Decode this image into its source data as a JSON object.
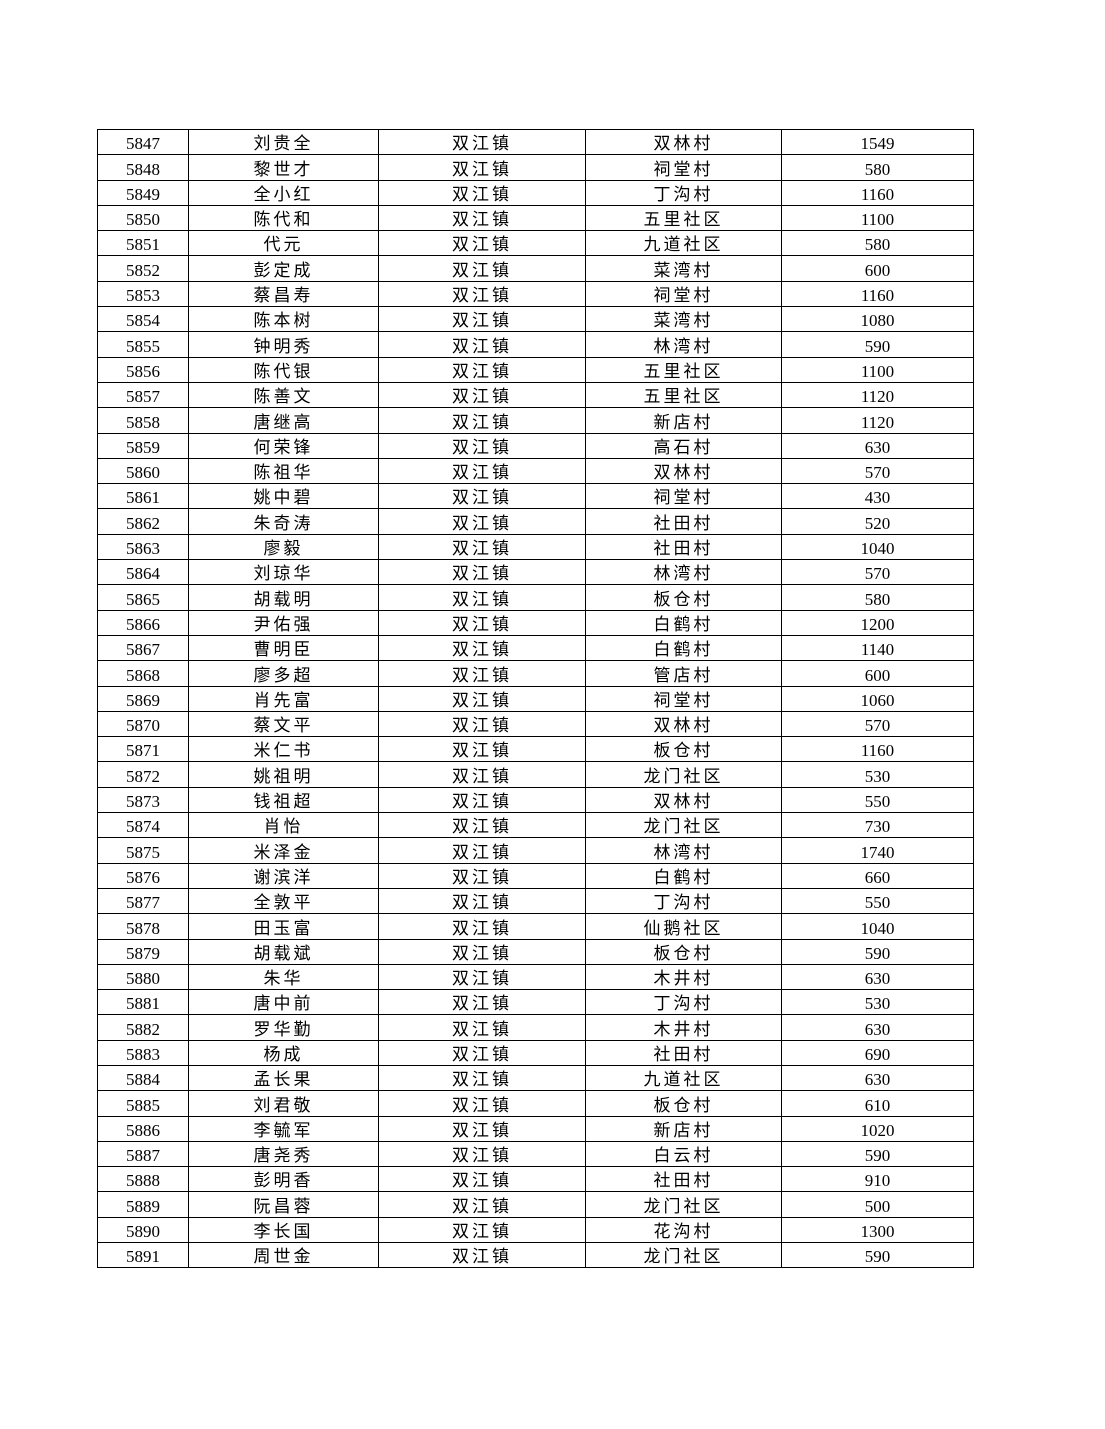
{
  "table": {
    "rows": [
      [
        "5847",
        "刘贵全",
        "双江镇",
        "双林村",
        "1549"
      ],
      [
        "5848",
        "黎世才",
        "双江镇",
        "祠堂村",
        "580"
      ],
      [
        "5849",
        "全小红",
        "双江镇",
        "丁沟村",
        "1160"
      ],
      [
        "5850",
        "陈代和",
        "双江镇",
        "五里社区",
        "1100"
      ],
      [
        "5851",
        "代元",
        "双江镇",
        "九道社区",
        "580"
      ],
      [
        "5852",
        "彭定成",
        "双江镇",
        "菜湾村",
        "600"
      ],
      [
        "5853",
        "蔡昌寿",
        "双江镇",
        "祠堂村",
        "1160"
      ],
      [
        "5854",
        "陈本树",
        "双江镇",
        "菜湾村",
        "1080"
      ],
      [
        "5855",
        "钟明秀",
        "双江镇",
        "林湾村",
        "590"
      ],
      [
        "5856",
        "陈代银",
        "双江镇",
        "五里社区",
        "1100"
      ],
      [
        "5857",
        "陈善文",
        "双江镇",
        "五里社区",
        "1120"
      ],
      [
        "5858",
        "唐继高",
        "双江镇",
        "新店村",
        "1120"
      ],
      [
        "5859",
        "何荣锋",
        "双江镇",
        "高石村",
        "630"
      ],
      [
        "5860",
        "陈祖华",
        "双江镇",
        "双林村",
        "570"
      ],
      [
        "5861",
        "姚中碧",
        "双江镇",
        "祠堂村",
        "430"
      ],
      [
        "5862",
        "朱奇涛",
        "双江镇",
        "社田村",
        "520"
      ],
      [
        "5863",
        "廖毅",
        "双江镇",
        "社田村",
        "1040"
      ],
      [
        "5864",
        "刘琼华",
        "双江镇",
        "林湾村",
        "570"
      ],
      [
        "5865",
        "胡载明",
        "双江镇",
        "板仓村",
        "580"
      ],
      [
        "5866",
        "尹佑强",
        "双江镇",
        "白鹤村",
        "1200"
      ],
      [
        "5867",
        "曹明臣",
        "双江镇",
        "白鹤村",
        "1140"
      ],
      [
        "5868",
        "廖多超",
        "双江镇",
        "管店村",
        "600"
      ],
      [
        "5869",
        "肖先富",
        "双江镇",
        "祠堂村",
        "1060"
      ],
      [
        "5870",
        "蔡文平",
        "双江镇",
        "双林村",
        "570"
      ],
      [
        "5871",
        "米仁书",
        "双江镇",
        "板仓村",
        "1160"
      ],
      [
        "5872",
        "姚祖明",
        "双江镇",
        "龙门社区",
        "530"
      ],
      [
        "5873",
        "钱祖超",
        "双江镇",
        "双林村",
        "550"
      ],
      [
        "5874",
        "肖怡",
        "双江镇",
        "龙门社区",
        "730"
      ],
      [
        "5875",
        "米泽金",
        "双江镇",
        "林湾村",
        "1740"
      ],
      [
        "5876",
        "谢滨洋",
        "双江镇",
        "白鹤村",
        "660"
      ],
      [
        "5877",
        "全敦平",
        "双江镇",
        "丁沟村",
        "550"
      ],
      [
        "5878",
        "田玉富",
        "双江镇",
        "仙鹅社区",
        "1040"
      ],
      [
        "5879",
        "胡载斌",
        "双江镇",
        "板仓村",
        "590"
      ],
      [
        "5880",
        "朱华",
        "双江镇",
        "木井村",
        "630"
      ],
      [
        "5881",
        "唐中前",
        "双江镇",
        "丁沟村",
        "530"
      ],
      [
        "5882",
        "罗华勤",
        "双江镇",
        "木井村",
        "630"
      ],
      [
        "5883",
        "杨成",
        "双江镇",
        "社田村",
        "690"
      ],
      [
        "5884",
        "孟长果",
        "双江镇",
        "九道社区",
        "630"
      ],
      [
        "5885",
        "刘君敬",
        "双江镇",
        "板仓村",
        "610"
      ],
      [
        "5886",
        "李毓军",
        "双江镇",
        "新店村",
        "1020"
      ],
      [
        "5887",
        "唐尧秀",
        "双江镇",
        "白云村",
        "590"
      ],
      [
        "5888",
        "彭明香",
        "双江镇",
        "社田村",
        "910"
      ],
      [
        "5889",
        "阮昌蓉",
        "双江镇",
        "龙门社区",
        "500"
      ],
      [
        "5890",
        "李长国",
        "双江镇",
        "花沟村",
        "1300"
      ],
      [
        "5891",
        "周世金",
        "双江镇",
        "龙门社区",
        "590"
      ]
    ]
  }
}
